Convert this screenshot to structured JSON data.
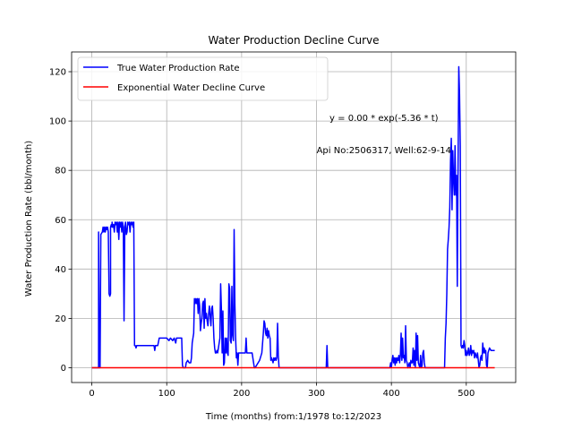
{
  "chart_data": {
    "type": "line",
    "title": "Water Production Decline Curve",
    "xlabel": "Time (months) from:1/1978 to:12/2023",
    "ylabel": "Water Production Rate (bbl/month)",
    "xlim": [
      -27,
      566
    ],
    "ylim": [
      -6,
      128
    ],
    "xticks": [
      0,
      100,
      200,
      300,
      400,
      500
    ],
    "yticks": [
      0,
      20,
      40,
      60,
      80,
      100,
      120
    ],
    "grid": true,
    "legend_position": "top-left",
    "annotations": [
      {
        "text": "y = 0.00 * exp(-5.36 * t)",
        "x": 390,
        "y": 100
      },
      {
        "text": "Api No:2506317, Well:62-9-14",
        "x": 390,
        "y": 87
      }
    ],
    "series": [
      {
        "name": "True Water Production Rate",
        "color": "#0000ff",
        "points": [
          [
            0,
            0
          ],
          [
            9,
            0
          ],
          [
            9,
            55
          ],
          [
            10,
            0
          ],
          [
            11,
            0
          ],
          [
            12,
            54
          ],
          [
            14,
            55
          ],
          [
            15,
            57
          ],
          [
            16,
            55
          ],
          [
            17,
            57
          ],
          [
            18,
            55
          ],
          [
            19,
            57
          ],
          [
            20,
            56
          ],
          [
            21,
            57
          ],
          [
            22,
            55
          ],
          [
            23,
            30
          ],
          [
            24,
            29
          ],
          [
            25,
            30
          ],
          [
            25,
            57
          ],
          [
            26,
            58
          ],
          [
            27,
            57
          ],
          [
            27,
            59
          ],
          [
            28,
            57
          ],
          [
            29,
            58
          ],
          [
            30,
            55
          ],
          [
            31,
            59
          ],
          [
            32,
            58
          ],
          [
            33,
            59
          ],
          [
            34,
            55
          ],
          [
            35,
            59
          ],
          [
            36,
            52
          ],
          [
            37,
            59
          ],
          [
            38,
            57
          ],
          [
            39,
            59
          ],
          [
            40,
            55
          ],
          [
            41,
            59
          ],
          [
            42,
            57
          ],
          [
            43,
            19
          ],
          [
            44,
            57
          ],
          [
            45,
            59
          ],
          [
            46,
            54
          ],
          [
            47,
            55
          ],
          [
            48,
            59
          ],
          [
            49,
            58
          ],
          [
            50,
            59
          ],
          [
            51,
            55
          ],
          [
            52,
            59
          ],
          [
            53,
            58
          ],
          [
            54,
            59
          ],
          [
            55,
            57
          ],
          [
            56,
            59
          ],
          [
            57,
            9
          ],
          [
            58,
            9
          ],
          [
            59,
            8
          ],
          [
            60,
            9
          ],
          [
            62,
            9
          ],
          [
            65,
            9
          ],
          [
            70,
            9
          ],
          [
            75,
            9
          ],
          [
            80,
            9
          ],
          [
            83,
            9
          ],
          [
            84,
            7
          ],
          [
            85,
            9
          ],
          [
            88,
            9
          ],
          [
            90,
            12
          ],
          [
            95,
            12
          ],
          [
            100,
            12
          ],
          [
            103,
            11
          ],
          [
            105,
            12
          ],
          [
            108,
            11
          ],
          [
            110,
            12
          ],
          [
            112,
            10
          ],
          [
            113,
            12
          ],
          [
            115,
            12
          ],
          [
            118,
            12
          ],
          [
            120,
            12
          ],
          [
            121,
            1
          ],
          [
            122,
            0
          ],
          [
            124,
            0
          ],
          [
            125,
            0
          ],
          [
            126,
            2
          ],
          [
            128,
            3
          ],
          [
            130,
            2
          ],
          [
            132,
            2
          ],
          [
            133,
            4
          ],
          [
            134,
            10
          ],
          [
            135,
            12
          ],
          [
            136,
            14
          ],
          [
            137,
            28
          ],
          [
            138,
            26
          ],
          [
            139,
            28
          ],
          [
            140,
            26
          ],
          [
            141,
            28
          ],
          [
            142,
            22
          ],
          [
            143,
            28
          ],
          [
            144,
            25
          ],
          [
            145,
            15
          ],
          [
            146,
            18
          ],
          [
            147,
            20
          ],
          [
            148,
            26
          ],
          [
            149,
            27
          ],
          [
            150,
            16
          ],
          [
            151,
            28
          ],
          [
            152,
            20
          ],
          [
            153,
            22
          ],
          [
            154,
            19
          ],
          [
            155,
            17
          ],
          [
            156,
            22
          ],
          [
            157,
            25
          ],
          [
            158,
            21
          ],
          [
            159,
            17
          ],
          [
            160,
            24
          ],
          [
            161,
            25
          ],
          [
            162,
            20
          ],
          [
            163,
            12
          ],
          [
            164,
            8
          ],
          [
            165,
            6
          ],
          [
            166,
            6
          ],
          [
            167,
            7
          ],
          [
            168,
            6
          ],
          [
            169,
            8
          ],
          [
            170,
            10
          ],
          [
            171,
            12
          ],
          [
            172,
            34
          ],
          [
            173,
            24
          ],
          [
            174,
            6
          ],
          [
            175,
            23
          ],
          [
            176,
            1
          ],
          [
            177,
            2
          ],
          [
            178,
            12
          ],
          [
            179,
            6
          ],
          [
            180,
            12
          ],
          [
            181,
            6
          ],
          [
            182,
            5
          ],
          [
            183,
            34
          ],
          [
            184,
            32
          ],
          [
            185,
            11
          ],
          [
            186,
            10
          ],
          [
            187,
            33
          ],
          [
            188,
            13
          ],
          [
            189,
            11
          ],
          [
            190,
            56
          ],
          [
            191,
            26
          ],
          [
            192,
            12
          ],
          [
            193,
            4
          ],
          [
            194,
            6
          ],
          [
            195,
            1
          ],
          [
            196,
            6
          ],
          [
            198,
            6
          ],
          [
            200,
            6
          ],
          [
            202,
            6
          ],
          [
            205,
            6
          ],
          [
            206,
            12
          ],
          [
            207,
            6
          ],
          [
            208,
            6
          ],
          [
            210,
            6
          ],
          [
            212,
            6
          ],
          [
            214,
            6
          ],
          [
            215,
            4
          ],
          [
            216,
            2
          ],
          [
            217,
            0
          ],
          [
            218,
            0
          ],
          [
            220,
            1
          ],
          [
            222,
            2
          ],
          [
            224,
            3
          ],
          [
            225,
            4
          ],
          [
            226,
            5
          ],
          [
            227,
            6
          ],
          [
            228,
            10
          ],
          [
            229,
            14
          ],
          [
            230,
            19
          ],
          [
            231,
            18
          ],
          [
            232,
            14
          ],
          [
            233,
            13
          ],
          [
            234,
            16
          ],
          [
            235,
            12
          ],
          [
            236,
            15
          ],
          [
            237,
            13
          ],
          [
            238,
            12
          ],
          [
            239,
            3
          ],
          [
            240,
            4
          ],
          [
            241,
            3
          ],
          [
            242,
            2
          ],
          [
            243,
            4
          ],
          [
            244,
            3
          ],
          [
            245,
            4
          ],
          [
            246,
            3
          ],
          [
            247,
            4
          ],
          [
            248,
            18
          ],
          [
            249,
            5
          ],
          [
            250,
            0
          ],
          [
            280,
            0
          ],
          [
            310,
            0
          ],
          [
            313,
            0
          ],
          [
            314,
            9
          ],
          [
            315,
            0
          ],
          [
            340,
            0
          ],
          [
            370,
            0
          ],
          [
            398,
            0
          ],
          [
            399,
            2
          ],
          [
            400,
            0
          ],
          [
            401,
            3
          ],
          [
            402,
            5
          ],
          [
            403,
            2
          ],
          [
            404,
            4
          ],
          [
            405,
            1
          ],
          [
            406,
            4
          ],
          [
            407,
            2
          ],
          [
            408,
            4
          ],
          [
            409,
            3
          ],
          [
            410,
            5
          ],
          [
            411,
            2
          ],
          [
            412,
            5
          ],
          [
            413,
            14
          ],
          [
            414,
            3
          ],
          [
            415,
            12
          ],
          [
            416,
            4
          ],
          [
            417,
            5
          ],
          [
            418,
            2
          ],
          [
            419,
            17
          ],
          [
            420,
            3
          ],
          [
            421,
            2
          ],
          [
            422,
            0
          ],
          [
            423,
            1
          ],
          [
            424,
            2
          ],
          [
            425,
            0
          ],
          [
            426,
            3
          ],
          [
            427,
            2
          ],
          [
            428,
            2
          ],
          [
            429,
            8
          ],
          [
            430,
            1
          ],
          [
            431,
            7
          ],
          [
            432,
            0
          ],
          [
            433,
            14
          ],
          [
            434,
            3
          ],
          [
            435,
            13
          ],
          [
            436,
            2
          ],
          [
            437,
            1
          ],
          [
            438,
            0
          ],
          [
            439,
            5
          ],
          [
            440,
            0
          ],
          [
            441,
            1
          ],
          [
            442,
            6
          ],
          [
            443,
            7
          ],
          [
            444,
            2
          ],
          [
            445,
            0
          ],
          [
            450,
            0
          ],
          [
            455,
            0
          ],
          [
            460,
            0
          ],
          [
            465,
            0
          ],
          [
            471,
            0
          ],
          [
            472,
            12
          ],
          [
            473,
            18
          ],
          [
            474,
            30
          ],
          [
            475,
            48
          ],
          [
            476,
            52
          ],
          [
            477,
            57
          ],
          [
            478,
            65
          ],
          [
            479,
            84
          ],
          [
            480,
            93
          ],
          [
            481,
            64
          ],
          [
            482,
            88
          ],
          [
            483,
            76
          ],
          [
            484,
            70
          ],
          [
            485,
            90
          ],
          [
            486,
            70
          ],
          [
            487,
            78
          ],
          [
            488,
            33
          ],
          [
            489,
            80
          ],
          [
            490,
            122
          ],
          [
            491,
            111
          ],
          [
            492,
            90
          ],
          [
            493,
            9
          ],
          [
            494,
            8
          ],
          [
            495,
            9
          ],
          [
            496,
            8
          ],
          [
            497,
            11
          ],
          [
            498,
            9
          ],
          [
            499,
            5
          ],
          [
            500,
            7
          ],
          [
            501,
            5
          ],
          [
            502,
            6
          ],
          [
            503,
            8
          ],
          [
            504,
            5
          ],
          [
            505,
            6
          ],
          [
            506,
            9
          ],
          [
            507,
            5
          ],
          [
            508,
            7
          ],
          [
            509,
            6
          ],
          [
            510,
            7
          ],
          [
            511,
            4
          ],
          [
            512,
            6
          ],
          [
            513,
            5
          ],
          [
            514,
            4
          ],
          [
            515,
            6
          ],
          [
            516,
            3
          ],
          [
            517,
            0
          ],
          [
            518,
            1
          ],
          [
            519,
            4
          ],
          [
            520,
            5
          ],
          [
            521,
            3
          ],
          [
            522,
            10
          ],
          [
            523,
            6
          ],
          [
            524,
            8
          ],
          [
            525,
            6
          ],
          [
            526,
            7
          ],
          [
            527,
            1
          ],
          [
            528,
            0
          ],
          [
            529,
            6
          ],
          [
            530,
            7
          ],
          [
            531,
            8
          ],
          [
            533,
            7
          ],
          [
            535,
            7
          ],
          [
            538,
            7
          ]
        ]
      },
      {
        "name": "Exponential Water Decline Curve",
        "color": "#ff0000",
        "points": [
          [
            0,
            0
          ],
          [
            538,
            0
          ]
        ]
      }
    ]
  }
}
